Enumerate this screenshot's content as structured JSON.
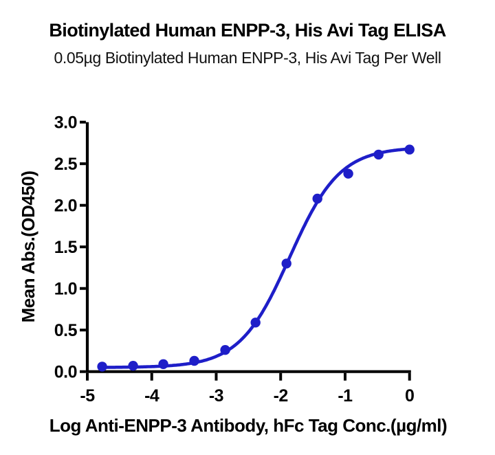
{
  "header": {
    "title": "Biotinylated Human ENPP-3, His Avi Tag ELISA",
    "subtitle": "0.05µg Biotinylated Human ENPP-3, His Avi Tag Per Well"
  },
  "chart_data": {
    "type": "scatter",
    "title": "Biotinylated Human ENPP-3, His Avi Tag ELISA",
    "subtitle": "0.05µg Biotinylated Human ENPP-3, His Avi Tag Per Well",
    "xlabel": "Log Anti-ENPP-3 Antibody, hFc Tag Conc.(µg/ml)",
    "ylabel": "Mean Abs.(OD450)",
    "xlim": [
      -5,
      0
    ],
    "ylim": [
      0,
      3
    ],
    "x_ticks": [
      -5,
      -4,
      -3,
      -2,
      -1,
      0
    ],
    "y_ticks": [
      "0.0",
      "0.5",
      "1.0",
      "1.5",
      "2.0",
      "2.5",
      "3.0"
    ],
    "series": [
      {
        "x": [
          -4.77,
          -4.29,
          -3.82,
          -3.34,
          -2.86,
          -2.39,
          -1.91,
          -1.43,
          -0.95,
          -0.48,
          0.0
        ],
        "y": [
          0.06,
          0.07,
          0.09,
          0.13,
          0.26,
          0.59,
          1.3,
          2.08,
          2.38,
          2.61,
          2.67
        ]
      }
    ],
    "fit": {
      "model": "4PL sigmoid",
      "bottom": 0.05,
      "top": 2.7,
      "hill": 1.12,
      "log_ec50": -1.86
    },
    "color": "#1E1EC8",
    "axis_color": "#000000",
    "grid": false,
    "legend": "none",
    "marker": "circle"
  }
}
